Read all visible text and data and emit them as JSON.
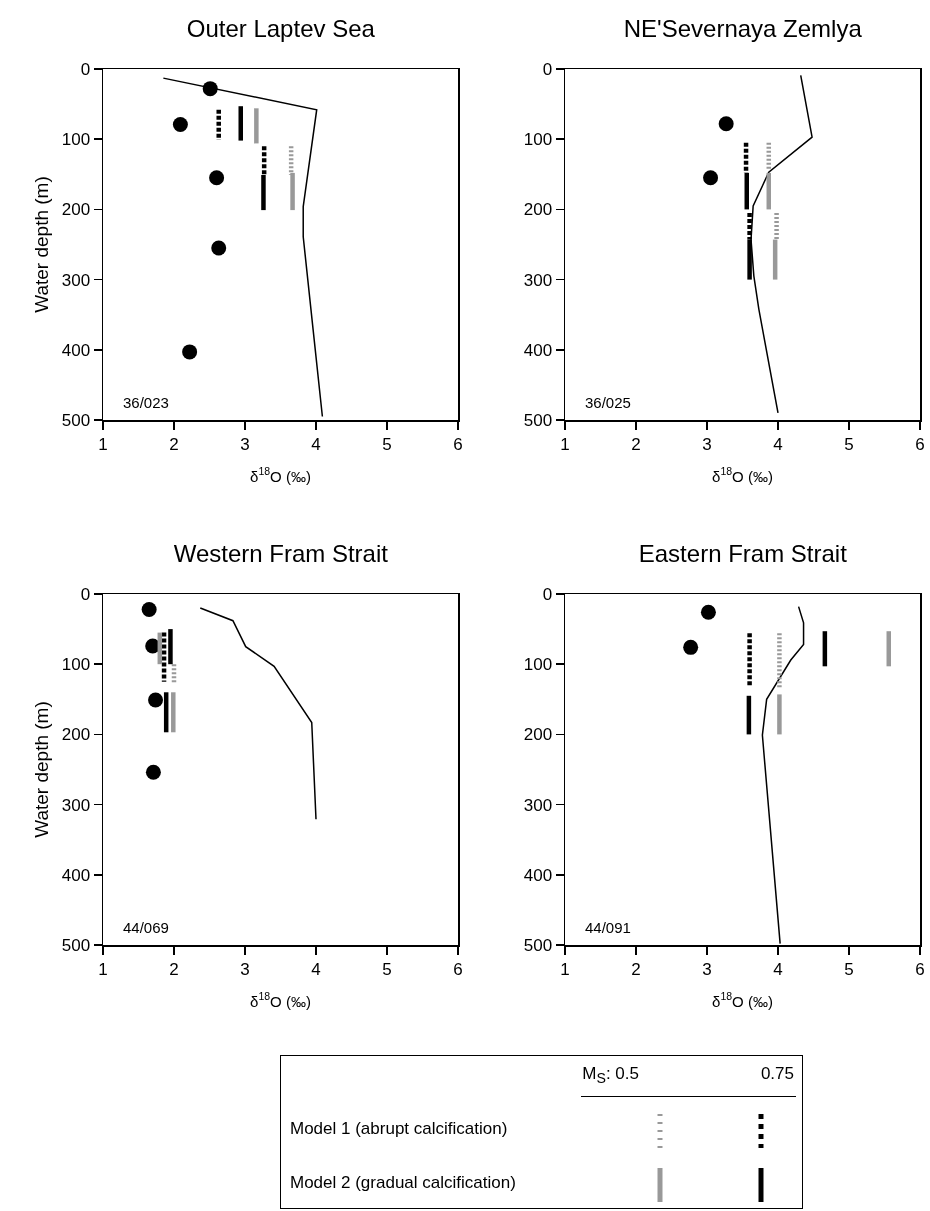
{
  "chart_data": [
    {
      "type": "line",
      "title": "Outer Laptev Sea",
      "xlabel": "δ$^{18}$O (‰)",
      "ylabel": "Water depth (m)",
      "xlim": [
        1,
        6
      ],
      "xticks": [
        1,
        2,
        3,
        4,
        5,
        6
      ],
      "ylim": [
        500,
        0
      ],
      "yticks": [
        0,
        100,
        200,
        300,
        400,
        500
      ],
      "annotations": [
        "36/023"
      ],
      "series": [
        {
          "color": "#000000",
          "marker": "none",
          "line_style": "solid",
          "x": [
            1.85,
            4.01,
            3.82,
            3.82,
            3.96,
            4.09
          ],
          "values": [
            13,
            58,
            196,
            239,
            372,
            495
          ]
        },
        {
          "type": "scatter",
          "color": "#000000",
          "marker": "circle",
          "x": [
            2.51,
            2.09,
            2.6,
            2.63,
            2.22
          ],
          "values": [
            28,
            79,
            155,
            255,
            403
          ]
        },
        {
          "color": "#999999",
          "marker": "none",
          "line_style": "dotted",
          "x": [
            3.65,
            3.65
          ],
          "values": [
            110,
            151
          ]
        },
        {
          "color": "#000000",
          "marker": "none",
          "line_style": "dashed",
          "x": [
            2.63,
            2.63,
            null,
            3.27,
            3.27
          ],
          "values": [
            58,
            101,
            null,
            110,
            151
          ]
        },
        {
          "color": "#999999",
          "marker": "none",
          "line_style": "solid",
          "x": [
            3.16,
            3.16,
            null,
            3.67,
            3.67
          ],
          "values": [
            56,
            106,
            null,
            148,
            201
          ]
        },
        {
          "color": "#000000",
          "marker": "none",
          "line_style": "solid",
          "x": [
            2.94,
            2.94,
            null,
            3.26,
            3.26
          ],
          "values": [
            53,
            102,
            null,
            151,
            201
          ]
        }
      ]
    },
    {
      "type": "line",
      "title": "NE'Severnaya Zemlya",
      "xlabel": "δ$^{18}$O (‰)",
      "xlim": [
        1,
        6
      ],
      "xticks": [
        1,
        2,
        3,
        4,
        5,
        6
      ],
      "ylim": [
        500,
        0
      ],
      "yticks": [
        0,
        100,
        200,
        300,
        400,
        500
      ],
      "annotations": [
        "36/025"
      ],
      "series": [
        {
          "color": "#000000",
          "marker": "none",
          "line_style": "solid",
          "x": [
            4.32,
            4.48,
            3.87,
            3.65,
            3.62,
            3.66,
            3.73,
            4.0
          ],
          "values": [
            9,
            97,
            147,
            195,
            243,
            295,
            342,
            490
          ]
        },
        {
          "type": "scatter",
          "color": "#000000",
          "marker": "circle",
          "x": [
            3.27,
            3.05
          ],
          "values": [
            78,
            155
          ]
        },
        {
          "color": "#999999",
          "marker": "none",
          "line_style": "dotted",
          "x": [
            3.87,
            3.87,
            null,
            3.98,
            3.98
          ],
          "values": [
            105,
            143,
            null,
            205,
            243
          ]
        },
        {
          "color": "#000000",
          "marker": "none",
          "line_style": "dashed",
          "x": [
            3.55,
            3.55,
            null,
            3.6,
            3.6
          ],
          "values": [
            105,
            148,
            null,
            205,
            243
          ]
        },
        {
          "color": "#999999",
          "marker": "none",
          "line_style": "solid",
          "x": [
            3.87,
            3.87,
            null,
            3.96,
            3.96
          ],
          "values": [
            148,
            200,
            null,
            243,
            300
          ]
        },
        {
          "color": "#000000",
          "marker": "none",
          "line_style": "solid",
          "x": [
            3.56,
            3.56,
            null,
            3.6,
            3.6
          ],
          "values": [
            148,
            200,
            null,
            243,
            300
          ]
        }
      ]
    },
    {
      "type": "line",
      "title": "Western Fram Strait",
      "xlabel": "δ$^{18}$O (‰)",
      "ylabel": "Water depth (m)",
      "xlim": [
        1,
        6
      ],
      "xticks": [
        1,
        2,
        3,
        4,
        5,
        6
      ],
      "ylim": [
        500,
        0
      ],
      "yticks": [
        0,
        100,
        200,
        300,
        400,
        500
      ],
      "annotations": [
        "44/069"
      ],
      "series": [
        {
          "color": "#000000",
          "marker": "none",
          "line_style": "solid",
          "x": [
            2.37,
            2.83,
            3.01,
            3.41,
            3.94,
            4.0
          ],
          "values": [
            20,
            38,
            75,
            103,
            183,
            321
          ]
        },
        {
          "type": "scatter",
          "color": "#000000",
          "marker": "circle",
          "x": [
            1.65,
            1.7,
            1.74,
            1.71
          ],
          "values": [
            22,
            74,
            151,
            254
          ]
        },
        {
          "color": "#999999",
          "marker": "none",
          "line_style": "dotted",
          "x": [
            2.0,
            2.0
          ],
          "values": [
            100,
            126
          ]
        },
        {
          "color": "#000000",
          "marker": "none",
          "line_style": "dashed",
          "x": [
            1.86,
            1.86
          ],
          "values": [
            55,
            125
          ]
        },
        {
          "color": "#999999",
          "marker": "none",
          "line_style": "solid",
          "x": [
            1.8,
            1.8,
            null,
            1.99,
            1.99
          ],
          "values": [
            55,
            100,
            null,
            140,
            197
          ]
        },
        {
          "color": "#000000",
          "marker": "none",
          "line_style": "solid",
          "x": [
            1.95,
            1.95,
            null,
            1.89,
            1.89
          ],
          "values": [
            50,
            100,
            null,
            140,
            197
          ]
        }
      ]
    },
    {
      "type": "line",
      "title": "Eastern Fram Strait",
      "xlabel": "δ$^{18}$O (‰)",
      "xlim": [
        1,
        6
      ],
      "xticks": [
        1,
        2,
        3,
        4,
        5,
        6
      ],
      "ylim": [
        500,
        0
      ],
      "yticks": [
        0,
        100,
        200,
        300,
        400,
        500
      ],
      "annotations": [
        "44/091",
        "M$_{S}$: 0.5",
        "0.75",
        "Model 1 (abrupt calcification)",
        "Model 2 (gradual calcification)"
      ],
      "series": [
        {
          "color": "#000000",
          "marker": "none",
          "line_style": "solid",
          "x": [
            4.29,
            4.36,
            4.36,
            4.18,
            3.84,
            3.78,
            4.03
          ],
          "values": [
            18,
            41,
            72,
            94,
            150,
            201,
            498
          ]
        },
        {
          "type": "scatter",
          "color": "#000000",
          "marker": "circle",
          "x": [
            3.02,
            2.77
          ],
          "values": [
            26,
            76
          ]
        },
        {
          "color": "#999999",
          "marker": "none",
          "line_style": "dotted",
          "x": [
            4.02,
            4.02
          ],
          "values": [
            56,
            133
          ]
        },
        {
          "color": "#000000",
          "marker": "none",
          "line_style": "dashed",
          "x": [
            3.6,
            3.6
          ],
          "values": [
            56,
            133
          ]
        },
        {
          "color": "#999999",
          "marker": "none",
          "line_style": "solid",
          "x": [
            4.02,
            4.02,
            null,
            5.56,
            5.56
          ],
          "values": [
            143,
            200,
            null,
            53,
            103
          ]
        },
        {
          "color": "#000000",
          "marker": "none",
          "line_style": "solid",
          "x": [
            3.59,
            3.59,
            null,
            4.66,
            4.66
          ],
          "values": [
            145,
            200,
            null,
            53,
            103
          ]
        }
      ]
    }
  ]
}
